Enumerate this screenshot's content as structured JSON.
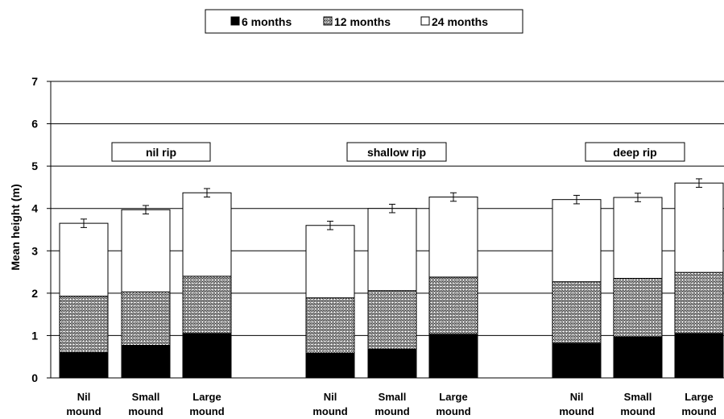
{
  "chart_data": {
    "type": "bar",
    "stacked": true,
    "title": "",
    "ylabel": "Mean height (m)",
    "xlabel": "",
    "ylim": [
      0,
      7
    ],
    "yticks": [
      "0",
      "1",
      "2",
      "3",
      "4",
      "5",
      "6",
      "7"
    ],
    "grid": true,
    "legend_position": "top-center",
    "groups": [
      "nil rip",
      "shallow rip",
      "deep rip"
    ],
    "categories": [
      "Nil\nmound",
      "Small\nmound",
      "Large\nmound",
      "Nil\nmound",
      "Small\nmound",
      "Large\nmound",
      "Nil\nmound",
      "Small\nmound",
      "Large\nmound"
    ],
    "series": [
      {
        "name": "6 months",
        "pattern": "solid-black",
        "heights": [
          0.6,
          0.77,
          1.05,
          0.58,
          0.68,
          1.03,
          0.82,
          0.97,
          1.05
        ]
      },
      {
        "name": "12 months",
        "pattern": "crosshatch",
        "heights": [
          1.33,
          1.26,
          1.35,
          1.31,
          1.38,
          1.35,
          1.45,
          1.38,
          1.44
        ]
      },
      {
        "name": "24 months",
        "pattern": "white",
        "heights": [
          1.72,
          1.94,
          1.97,
          1.71,
          1.94,
          1.89,
          1.94,
          1.91,
          2.11
        ]
      }
    ],
    "totals": [
      3.65,
      3.97,
      4.37,
      3.6,
      4.0,
      4.27,
      4.21,
      4.26,
      4.6
    ],
    "error_bars": [
      0.1,
      0.1,
      0.1,
      0.1,
      0.1,
      0.1,
      0.1,
      0.1,
      0.1
    ]
  }
}
